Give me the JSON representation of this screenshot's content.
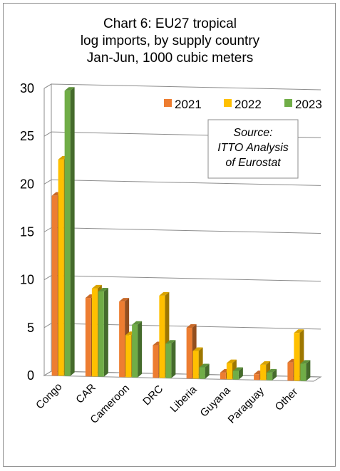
{
  "chart_data": {
    "type": "bar",
    "title_lines": [
      "Chart 6: EU27 tropical",
      "log imports, by supply country",
      "Jan-Jun, 1000 cubic meters"
    ],
    "categories": [
      "Congo",
      "CAR",
      "Cameroon",
      "DRC",
      "Liberia",
      "Guyana",
      "Paraguay",
      "Other"
    ],
    "series": [
      {
        "name": "2021",
        "color": "#ed7d31",
        "values": [
          18.8,
          8.2,
          7.9,
          3.4,
          5.3,
          0.7,
          0.6,
          1.9
        ]
      },
      {
        "name": "2022",
        "color": "#ffc000",
        "values": [
          22.6,
          9.2,
          4.4,
          8.6,
          2.9,
          1.7,
          1.6,
          5.0
        ]
      },
      {
        "name": "2023",
        "color": "#70ad47",
        "values": [
          29.8,
          8.9,
          5.5,
          3.6,
          1.2,
          0.9,
          0.8,
          1.8
        ]
      }
    ],
    "ylim": [
      0,
      30
    ],
    "yticks": [
      "0",
      "5",
      "10",
      "15",
      "20",
      "25",
      "30"
    ],
    "grid": true,
    "legend_position": "top-right",
    "source_lines": [
      "Source:",
      "ITTO  Analysis",
      "of Eurostat"
    ]
  }
}
